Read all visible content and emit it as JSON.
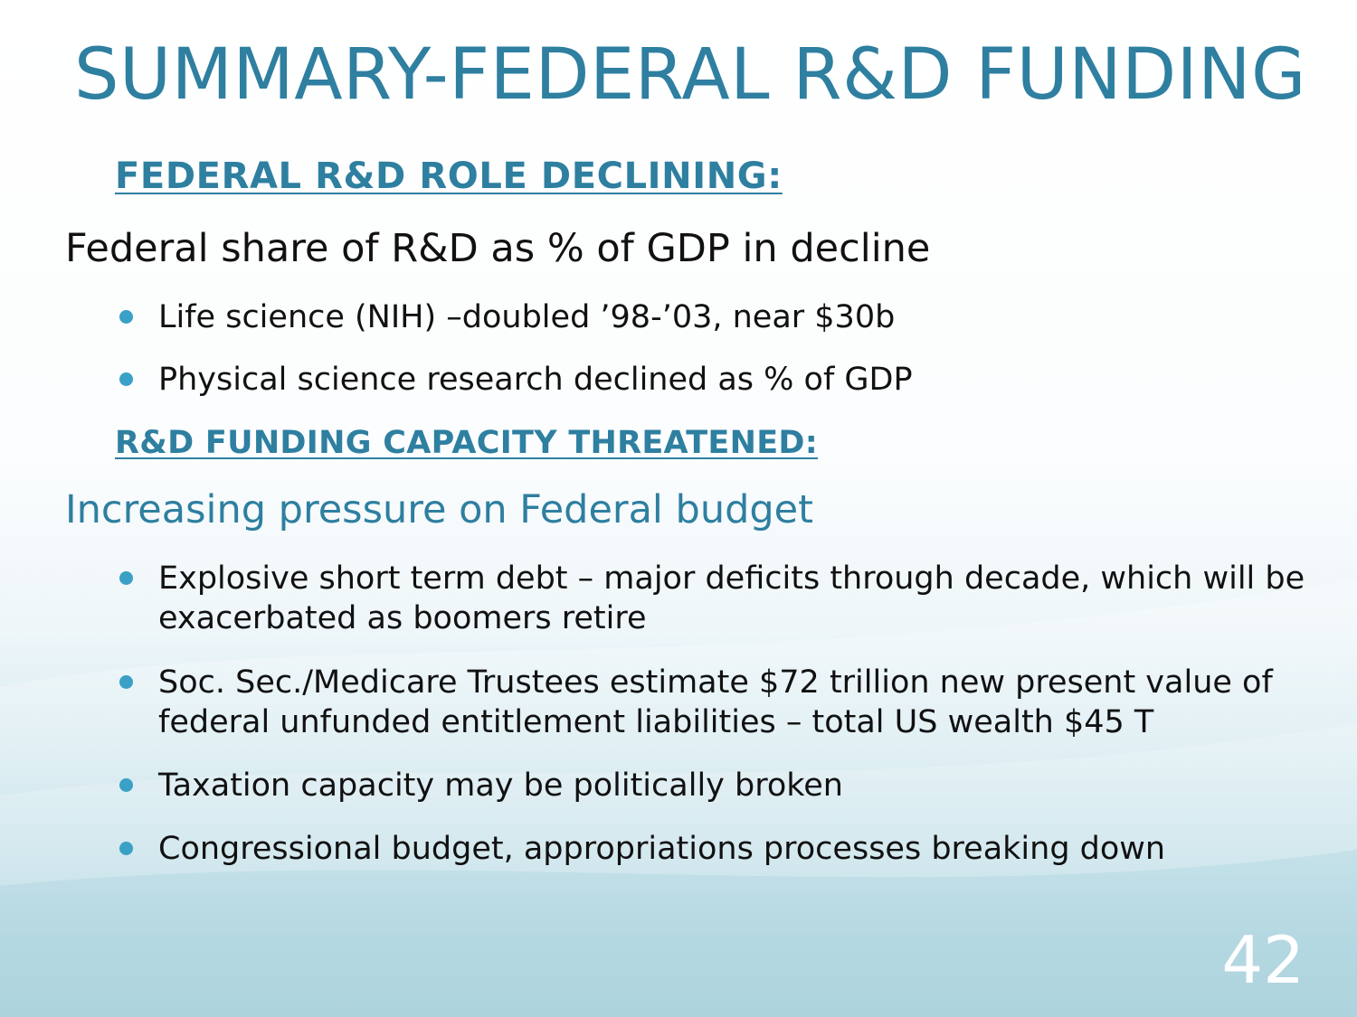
{
  "slide": {
    "title": "SUMMARY-FEDERAL R&D FUNDING",
    "page_number": "42",
    "sections": [
      {
        "heading": "FEDERAL R&D ROLE DECLINING:",
        "lead": "Federal share of R&D as % of GDP in decline",
        "bullets": [
          " Life science (NIH) –doubled ’98-’03, near $30b",
          "Physical science research declined as % of GDP"
        ]
      },
      {
        "heading": "R&D FUNDING CAPACITY THREATENED:",
        "lead": "Increasing pressure on Federal budget",
        "bullets": [
          " Explosive short term debt – major deficits through decade, which will be exacerbated as boomers retire",
          "Soc. Sec./Medicare Trustees estimate $72 trillion new present value of federal unfunded entitlement liabilities – total US wealth $45 T",
          "Taxation capacity may be politically broken",
          "Congressional budget, appropriations processes breaking down"
        ]
      }
    ]
  },
  "colors": {
    "accent": "#2e7fa0",
    "bullet": "#3aa0c6",
    "text": "#111111",
    "footer_band": "#8ec2d2"
  }
}
